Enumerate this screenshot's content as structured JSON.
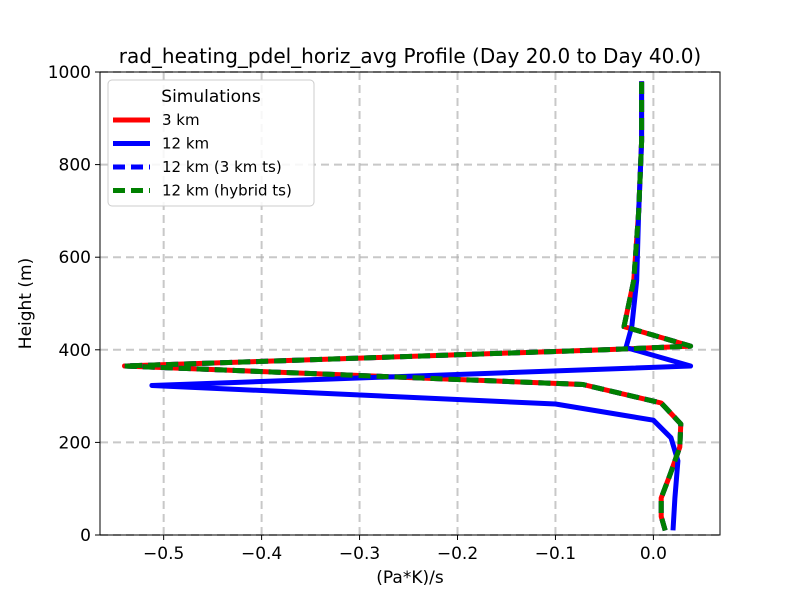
{
  "chart_data": {
    "type": "line",
    "title": "rad_heating_pdel_horiz_avg Profile (Day 20.0 to Day 40.0)",
    "xlabel": "(Pa*K)/s",
    "ylabel": "Height (m)",
    "xlim": [
      -0.565,
      0.068
    ],
    "ylim": [
      0,
      1000
    ],
    "x_ticks": [
      -0.5,
      -0.4,
      -0.3,
      -0.2,
      -0.1,
      0.0
    ],
    "x_tick_labels": [
      "−0.5",
      "−0.4",
      "−0.3",
      "−0.2",
      "−0.1",
      "0.0"
    ],
    "y_ticks": [
      0,
      200,
      400,
      600,
      800,
      1000
    ],
    "y_tick_labels": [
      "0",
      "200",
      "400",
      "600",
      "800",
      "1000"
    ],
    "grid": true,
    "legend": {
      "title": "Simulations",
      "position": "top-left"
    },
    "series": [
      {
        "name": "3 km",
        "color": "#ff0000",
        "style": "solid",
        "points": [
          [
            0.012,
            10
          ],
          [
            0.008,
            40
          ],
          [
            0.008,
            80
          ],
          [
            0.017,
            130
          ],
          [
            0.027,
            190
          ],
          [
            0.028,
            240
          ],
          [
            0.008,
            285
          ],
          [
            -0.072,
            325
          ],
          [
            -0.27,
            342
          ],
          [
            -0.54,
            365
          ],
          [
            -0.3,
            382
          ],
          [
            -0.05,
            400
          ],
          [
            0.038,
            408
          ],
          [
            -0.03,
            450
          ],
          [
            -0.02,
            550
          ],
          [
            -0.015,
            700
          ],
          [
            -0.012,
            850
          ],
          [
            -0.012,
            980
          ]
        ]
      },
      {
        "name": "12 km",
        "color": "#0000ff",
        "style": "solid",
        "points": [
          [
            0.02,
            10
          ],
          [
            0.022,
            80
          ],
          [
            0.025,
            160
          ],
          [
            0.018,
            210
          ],
          [
            0.0,
            248
          ],
          [
            -0.1,
            283
          ],
          [
            -0.512,
            323
          ],
          [
            0.038,
            365
          ],
          [
            -0.028,
            405
          ],
          [
            -0.022,
            450
          ],
          [
            -0.017,
            550
          ],
          [
            -0.015,
            700
          ],
          [
            -0.012,
            850
          ],
          [
            -0.012,
            980
          ]
        ]
      },
      {
        "name": "12 km (3 km ts)",
        "color": "#0000ff",
        "style": "dashed",
        "points": [
          [
            0.012,
            10
          ],
          [
            0.008,
            40
          ],
          [
            0.008,
            80
          ],
          [
            0.017,
            130
          ],
          [
            0.027,
            190
          ],
          [
            0.028,
            240
          ],
          [
            0.008,
            285
          ],
          [
            -0.072,
            325
          ],
          [
            -0.27,
            342
          ],
          [
            -0.54,
            365
          ],
          [
            -0.3,
            382
          ],
          [
            -0.05,
            400
          ],
          [
            0.038,
            408
          ],
          [
            -0.03,
            450
          ],
          [
            -0.02,
            550
          ],
          [
            -0.015,
            700
          ],
          [
            -0.012,
            850
          ],
          [
            -0.012,
            980
          ]
        ]
      },
      {
        "name": "12 km (hybrid ts)",
        "color": "#008000",
        "style": "dashed",
        "points": [
          [
            0.012,
            10
          ],
          [
            0.008,
            40
          ],
          [
            0.008,
            80
          ],
          [
            0.017,
            130
          ],
          [
            0.027,
            190
          ],
          [
            0.028,
            240
          ],
          [
            0.008,
            285
          ],
          [
            -0.072,
            325
          ],
          [
            -0.27,
            342
          ],
          [
            -0.54,
            365
          ],
          [
            -0.3,
            382
          ],
          [
            -0.05,
            400
          ],
          [
            0.038,
            408
          ],
          [
            -0.03,
            450
          ],
          [
            -0.02,
            550
          ],
          [
            -0.015,
            700
          ],
          [
            -0.012,
            850
          ],
          [
            -0.012,
            980
          ]
        ]
      }
    ]
  }
}
